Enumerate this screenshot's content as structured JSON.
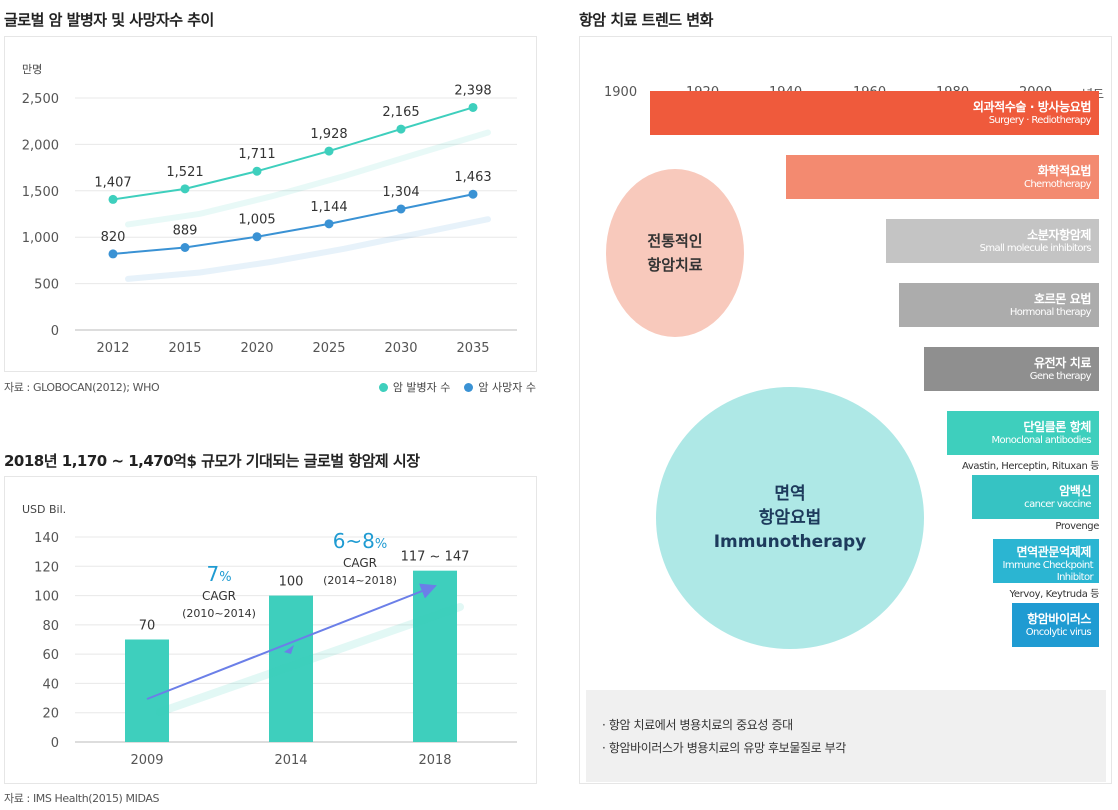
{
  "titles": {
    "global": "글로벌 암 발병자 및 사망자수 추이",
    "market": "2018년 1,170 ~ 1,470억$ 규모가 기대되는 글로벌 항암제 시장",
    "trend": "항암 치료 트렌드 변화"
  },
  "sources": {
    "global": "자료 : GLOBOCAN(2012); WHO",
    "market": "자료 : IMS Health(2015) MIDAS"
  },
  "chart_data": [
    {
      "type": "line",
      "ylabel": "만명",
      "categories": [
        "2012",
        "2015",
        "2020",
        "2025",
        "2030",
        "2035"
      ],
      "ylim": [
        0,
        2500
      ],
      "yticks": [
        "0",
        "500",
        "1,000",
        "1,500",
        "2,000",
        "2,500"
      ],
      "series": [
        {
          "name": "암 발병자 수",
          "color": "#3ecfbd",
          "values": [
            1407,
            1521,
            1711,
            1928,
            2165,
            2398
          ],
          "labels": [
            "1,407",
            "1,521",
            "1,711",
            "1,928",
            "2,165",
            "2,398"
          ]
        },
        {
          "name": "암 사망자 수",
          "color": "#3a92d4",
          "values": [
            820,
            889,
            1005,
            1144,
            1304,
            1463
          ],
          "labels": [
            "820",
            "889",
            "1,005",
            "1,144",
            "1,304",
            "1,463"
          ]
        }
      ],
      "grid": true,
      "legend": "bottom-right"
    },
    {
      "type": "bar",
      "ylabel": "USD Bil.",
      "categories": [
        "2009",
        "2014",
        "2018"
      ],
      "values": [
        70,
        100,
        117
      ],
      "value_range_top": 147,
      "labels": [
        "70",
        "100",
        "117 ~ 147"
      ],
      "ylim": [
        0,
        140
      ],
      "yticks": [
        "0",
        "20",
        "40",
        "60",
        "80",
        "100",
        "120",
        "140"
      ],
      "color": "#3ecfbd",
      "grid": true,
      "annotations": [
        {
          "value": "7",
          "unit": "%",
          "label": "CAGR",
          "period": "(2010~2014)"
        },
        {
          "value": "6~8",
          "unit": "%",
          "label": "CAGR",
          "period": "(2014~2018)"
        }
      ]
    }
  ],
  "trend": {
    "years": [
      "1900",
      "1920",
      "1940",
      "1960",
      "1980",
      "2000"
    ],
    "year_unit": "년도",
    "traditional": [
      "전통적인",
      "항암치료"
    ],
    "immuno": [
      "면역",
      "항암요법",
      "Immunotherapy"
    ],
    "therapies": [
      {
        "ko": "외과적수술 · 방사능요법",
        "en": "Surgery · Rediotherapy",
        "color": "#ef5a3c"
      },
      {
        "ko": "화학적요법",
        "en": "Chemotherapy",
        "color": "#f38a70"
      },
      {
        "ko": "소분자항암제",
        "en": "Small molecule inhibitors",
        "color": "#c4c4c4"
      },
      {
        "ko": "호르몬 요법",
        "en": "Hormonal therapy",
        "color": "#acacac"
      },
      {
        "ko": "유전자 치료",
        "en": "Gene therapy",
        "color": "#8f8f8f"
      },
      {
        "ko": "단일클론 항체",
        "en": "Monoclonal antibodies",
        "color": "#3ecfbd",
        "example": "Avastin, Herceptin, Rituxan 등"
      },
      {
        "ko": "암백신",
        "en": "cancer vaccine",
        "color": "#36c3c3",
        "example": "Provenge"
      },
      {
        "ko": "면역관문억제제",
        "en": "Immune Checkpoint Inhibitor",
        "color": "#2bb5d2",
        "example": "Yervoy, Keytruda 등"
      },
      {
        "ko": "항암바이러스",
        "en": "Oncolytic virus",
        "color": "#1f9bd2"
      }
    ],
    "notes": [
      "· 항암 치료에서 병용치료의 중요성 증대",
      "· 항암바이러스가 병용치료의 유망 후보물질로 부각"
    ]
  }
}
